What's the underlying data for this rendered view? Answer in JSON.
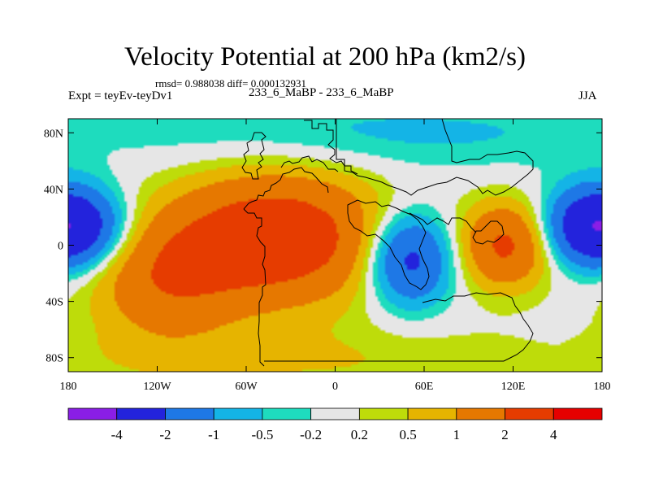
{
  "chart_data": {
    "type": "heatmap",
    "title": "Velocity Potential at 200 hPa (km2/s)",
    "stats": "rmsd= 0.988038 diff= 0.000132931",
    "left_label": "Expt = teyEv-teyDv1",
    "center_label": "233_6_MaBP - 233_6_MaBP",
    "right_label": "JJA",
    "xlim": [
      -180,
      180
    ],
    "ylim": [
      -90,
      90
    ],
    "x_ticks": [
      {
        "value": -180,
        "label": "180"
      },
      {
        "value": -120,
        "label": "120W"
      },
      {
        "value": -60,
        "label": "60W"
      },
      {
        "value": 0,
        "label": "0"
      },
      {
        "value": 60,
        "label": "60E"
      },
      {
        "value": 120,
        "label": "120E"
      },
      {
        "value": 180,
        "label": "180"
      }
    ],
    "y_ticks": [
      {
        "value": 80,
        "label": "80N"
      },
      {
        "value": 40,
        "label": "40N"
      },
      {
        "value": 0,
        "label": "0"
      },
      {
        "value": -40,
        "label": "40S"
      },
      {
        "value": -80,
        "label": "80S"
      }
    ],
    "levels": [
      -4,
      -2,
      -1,
      -0.5,
      -0.2,
      0.2,
      0.5,
      1,
      2,
      4
    ],
    "level_labels": [
      "-4",
      "-2",
      "-1",
      "-0.5",
      "-0.2",
      "0.2",
      "0.5",
      "1",
      "2",
      "4"
    ],
    "colors": [
      "#8a1ee6",
      "#2323dc",
      "#1e78e6",
      "#14b4e6",
      "#1edcbe",
      "#e6e6e6",
      "#bedc0a",
      "#e6b400",
      "#e67800",
      "#e63c00",
      "#e60000"
    ],
    "features": [
      {
        "name": "positive-center-south-america",
        "lon": -40,
        "lat": 5,
        "lon_r": 70,
        "lat_r": 45,
        "amplitude": 3.0
      },
      {
        "name": "positive-center-south-pacific",
        "lon": -115,
        "lat": -25,
        "lon_r": 50,
        "lat_r": 42,
        "amplitude": 1.6
      },
      {
        "name": "positive-center-southeast-asia",
        "lon": 115,
        "lat": 0,
        "lon_r": 30,
        "lat_r": 30,
        "amplitude": 2.2
      },
      {
        "name": "negative-center-africa",
        "lon": 50,
        "lat": -10,
        "lon_r": 28,
        "lat_r": 32,
        "amplitude": -2.6
      },
      {
        "name": "negative-center-dateline",
        "lon": -178,
        "lat": 13,
        "lon_r": 35,
        "lat_r": 28,
        "amplitude": -2.3
      },
      {
        "name": "negative-center-east-pacific",
        "lon": 175,
        "lat": 13,
        "lon_r": 30,
        "lat_r": 26,
        "amplitude": -2.0
      },
      {
        "name": "negative-band-north",
        "lon": 30,
        "lat": 80,
        "lon_r": 200,
        "lat_r": 26,
        "amplitude": -0.6
      },
      {
        "name": "positive-band-south",
        "lon": -30,
        "lat": -82,
        "lon_r": 200,
        "lat_r": 25,
        "amplitude": 0.5
      }
    ]
  }
}
